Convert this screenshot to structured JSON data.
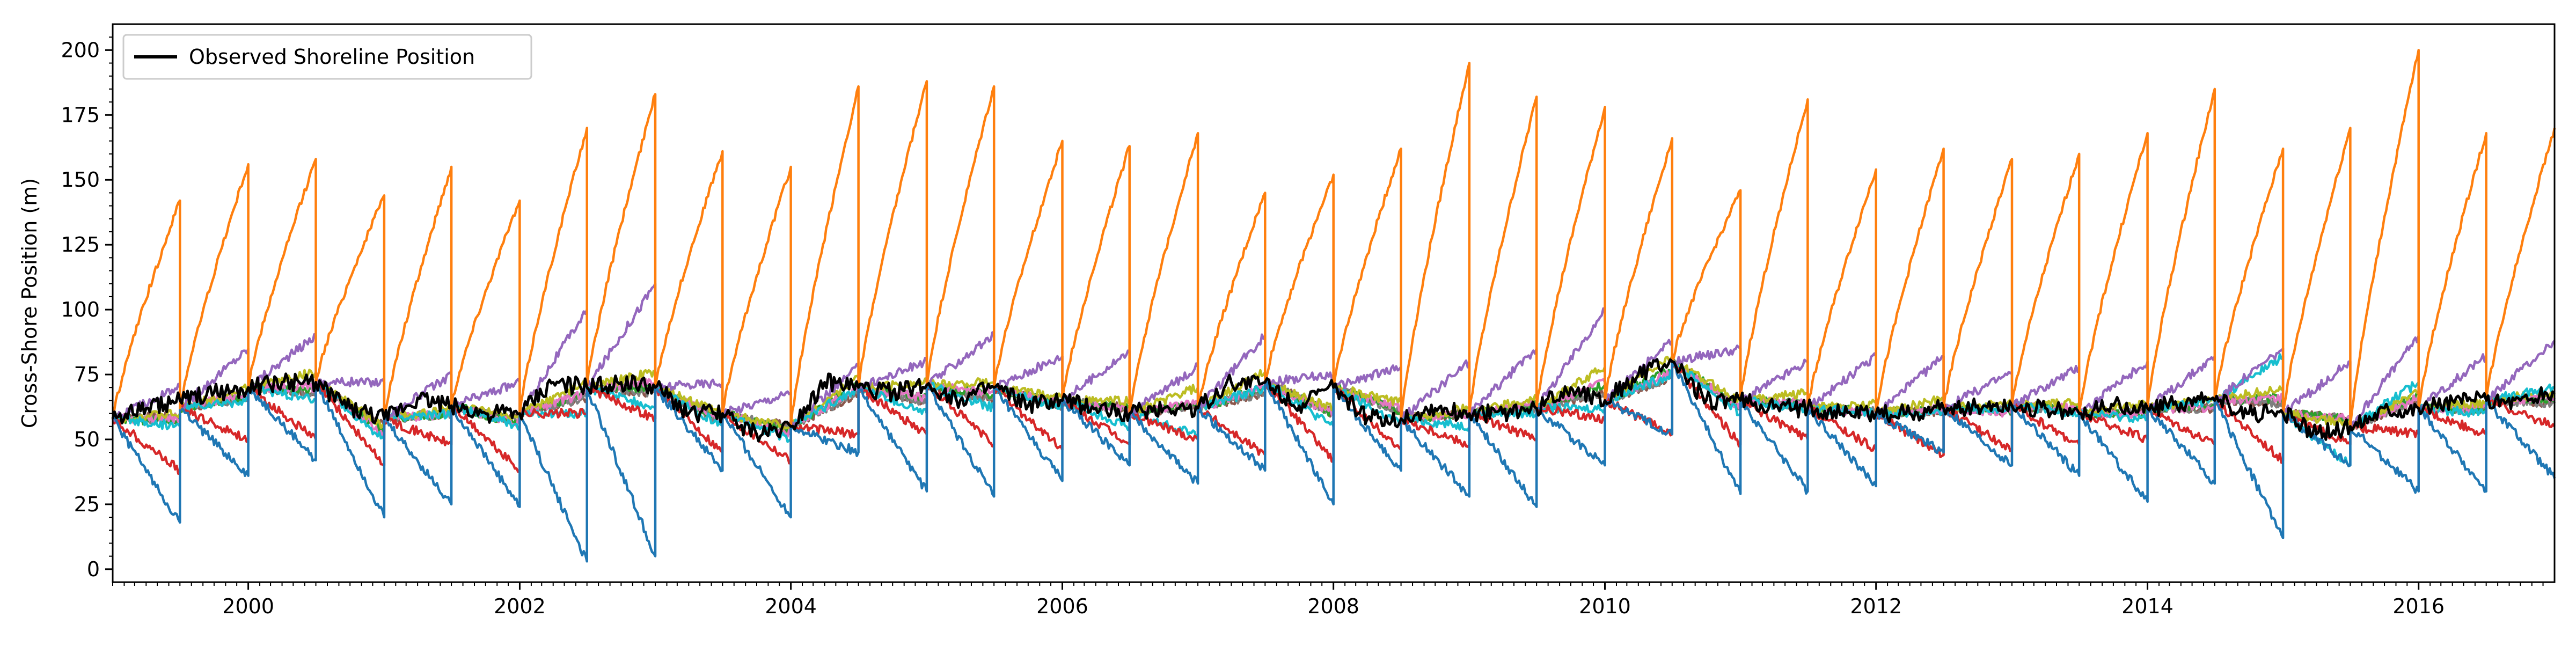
{
  "chart_data": {
    "type": "line",
    "title": "",
    "xlabel": "",
    "ylabel": "Cross-Shore Position (m)",
    "xlim": [
      "1999-01-01",
      "2017-01-01"
    ],
    "ylim": [
      -5,
      210
    ],
    "xticks": [
      "2000",
      "2002",
      "2004",
      "2006",
      "2008",
      "2010",
      "2012",
      "2014",
      "2016"
    ],
    "yticks": [
      0,
      25,
      50,
      75,
      100,
      125,
      150,
      175,
      200
    ],
    "grid": false,
    "legend": {
      "position": "upper-left",
      "entries": [
        "Observed Shoreline Position"
      ]
    },
    "note_generation": "Series are approximated as half-year sawtooth cycles: each series starts every cycle near the observed position and drifts linearly to the listed end value, then resets at the cycle boundary.",
    "cycle_boundaries": [
      "1999-01-01",
      "1999-07-01",
      "2000-01-01",
      "2000-07-01",
      "2001-01-01",
      "2001-07-01",
      "2002-01-01",
      "2002-07-01",
      "2003-01-01",
      "2003-07-01",
      "2004-01-01",
      "2004-07-01",
      "2005-01-01",
      "2005-07-01",
      "2006-01-01",
      "2006-07-01",
      "2007-01-01",
      "2007-07-01",
      "2008-01-01",
      "2008-07-01",
      "2009-01-01",
      "2009-07-01",
      "2010-01-01",
      "2010-07-01",
      "2011-01-01",
      "2011-07-01",
      "2012-01-01",
      "2012-07-01",
      "2013-01-01",
      "2013-07-01",
      "2014-01-01",
      "2014-07-01",
      "2015-01-01",
      "2015-07-01",
      "2016-01-01",
      "2016-07-01",
      "2017-01-01"
    ],
    "observed_start_per_cycle": [
      58,
      62,
      70,
      72,
      58,
      63,
      60,
      70,
      70,
      60,
      55,
      70,
      71,
      70,
      65,
      60,
      62,
      72,
      70,
      58,
      60,
      62,
      65,
      80,
      65,
      62,
      60,
      62,
      63,
      60,
      62,
      65,
      60,
      55,
      62,
      65
    ],
    "series": [
      {
        "name": "Observed Shoreline Position",
        "color": "#000000",
        "values": [
          [
            "1999-01-01",
            58
          ],
          [
            "1999-04-01",
            62
          ],
          [
            "1999-07-01",
            65
          ],
          [
            "1999-10-01",
            68
          ],
          [
            "2000-01-01",
            70
          ],
          [
            "2000-04-01",
            72
          ],
          [
            "2000-07-01",
            72
          ],
          [
            "2000-10-01",
            62
          ],
          [
            "2001-01-01",
            58
          ],
          [
            "2001-04-01",
            66
          ],
          [
            "2001-07-01",
            63
          ],
          [
            "2001-10-01",
            60
          ],
          [
            "2002-01-01",
            60
          ],
          [
            "2002-04-01",
            72
          ],
          [
            "2002-07-01",
            70
          ],
          [
            "2002-10-01",
            72
          ],
          [
            "2003-01-01",
            70
          ],
          [
            "2003-04-01",
            60
          ],
          [
            "2003-07-01",
            60
          ],
          [
            "2003-10-01",
            52
          ],
          [
            "2004-01-01",
            55
          ],
          [
            "2004-04-01",
            72
          ],
          [
            "2004-07-01",
            70
          ],
          [
            "2004-10-01",
            68
          ],
          [
            "2005-01-01",
            71
          ],
          [
            "2005-04-01",
            65
          ],
          [
            "2005-07-01",
            70
          ],
          [
            "2005-10-01",
            63
          ],
          [
            "2006-01-01",
            65
          ],
          [
            "2006-04-01",
            62
          ],
          [
            "2006-07-01",
            60
          ],
          [
            "2006-10-01",
            62
          ],
          [
            "2007-01-01",
            62
          ],
          [
            "2007-04-01",
            72
          ],
          [
            "2007-07-01",
            72
          ],
          [
            "2007-10-01",
            63
          ],
          [
            "2008-01-01",
            70
          ],
          [
            "2008-04-01",
            58
          ],
          [
            "2008-07-01",
            58
          ],
          [
            "2008-10-01",
            62
          ],
          [
            "2009-01-01",
            60
          ],
          [
            "2009-04-01",
            60
          ],
          [
            "2009-07-01",
            62
          ],
          [
            "2009-10-01",
            70
          ],
          [
            "2010-01-01",
            65
          ],
          [
            "2010-04-01",
            75
          ],
          [
            "2010-07-01",
            80
          ],
          [
            "2010-10-01",
            65
          ],
          [
            "2011-01-01",
            65
          ],
          [
            "2011-04-01",
            62
          ],
          [
            "2011-07-01",
            62
          ],
          [
            "2011-10-01",
            60
          ],
          [
            "2012-01-01",
            60
          ],
          [
            "2012-04-01",
            60
          ],
          [
            "2012-07-01",
            62
          ],
          [
            "2012-10-01",
            63
          ],
          [
            "2013-01-01",
            63
          ],
          [
            "2013-04-01",
            62
          ],
          [
            "2013-07-01",
            60
          ],
          [
            "2013-10-01",
            63
          ],
          [
            "2014-01-01",
            62
          ],
          [
            "2014-04-01",
            64
          ],
          [
            "2014-07-01",
            65
          ],
          [
            "2014-10-01",
            60
          ],
          [
            "2015-01-01",
            60
          ],
          [
            "2015-04-01",
            52
          ],
          [
            "2015-07-01",
            55
          ],
          [
            "2015-10-01",
            62
          ],
          [
            "2016-01-01",
            62
          ],
          [
            "2016-04-01",
            65
          ],
          [
            "2016-07-01",
            65
          ],
          [
            "2016-10-01",
            65
          ],
          [
            "2017-01-01",
            68
          ]
        ]
      },
      {
        "name": "",
        "color": "#ff7f0e",
        "cycle_end_values": [
          142,
          156,
          158,
          144,
          155,
          142,
          170,
          183,
          161,
          155,
          186,
          188,
          186,
          165,
          163,
          168,
          145,
          152,
          162,
          195,
          182,
          178,
          166,
          146,
          181,
          154,
          162,
          158,
          160,
          168,
          185,
          162,
          170,
          200,
          168,
          170
        ]
      },
      {
        "name": "",
        "color": "#1f77b4",
        "cycle_end_values": [
          18,
          36,
          42,
          20,
          25,
          24,
          3,
          5,
          38,
          20,
          45,
          30,
          28,
          34,
          40,
          33,
          38,
          25,
          38,
          28,
          24,
          40,
          52,
          29,
          30,
          32,
          45,
          40,
          36,
          26,
          33,
          12,
          40,
          30,
          30,
          35
        ]
      },
      {
        "name": "",
        "color": "#9467bd",
        "cycle_end_values": [
          70,
          85,
          90,
          72,
          75,
          72,
          100,
          110,
          72,
          68,
          78,
          80,
          90,
          82,
          84,
          78,
          90,
          75,
          78,
          80,
          85,
          100,
          88,
          85,
          80,
          82,
          82,
          76,
          78,
          80,
          82,
          85,
          80,
          90,
          82,
          88
        ]
      },
      {
        "name": "",
        "color": "#d62728",
        "cycle_end_values": [
          38,
          50,
          50,
          40,
          48,
          38,
          60,
          58,
          45,
          42,
          52,
          52,
          48,
          46,
          48,
          50,
          44,
          42,
          46,
          48,
          50,
          58,
          52,
          48,
          50,
          46,
          44,
          46,
          48,
          50,
          48,
          42,
          48,
          52,
          52,
          55
        ]
      },
      {
        "name": "",
        "color": "#17becf",
        "cycle_end_values": [
          55,
          65,
          65,
          50,
          60,
          55,
          60,
          62,
          55,
          50,
          70,
          60,
          62,
          62,
          55,
          52,
          70,
          55,
          56,
          55,
          60,
          62,
          75,
          60,
          62,
          60,
          60,
          62,
          60,
          58,
          65,
          82,
          40,
          72,
          60,
          70
        ]
      },
      {
        "name": "",
        "color": "#bcbd22",
        "cycle_end_values": [
          60,
          70,
          76,
          55,
          62,
          58,
          72,
          76,
          60,
          55,
          74,
          72,
          72,
          66,
          65,
          70,
          76,
          62,
          64,
          62,
          66,
          78,
          82,
          65,
          68,
          64,
          66,
          64,
          64,
          64,
          66,
          70,
          56,
          68,
          64,
          68
        ]
      },
      {
        "name": "",
        "color": "#e377c2",
        "cycle_end_values": [
          58,
          68,
          70,
          52,
          60,
          56,
          68,
          72,
          58,
          52,
          70,
          66,
          68,
          64,
          62,
          64,
          70,
          60,
          62,
          60,
          64,
          72,
          76,
          62,
          64,
          60,
          62,
          60,
          62,
          60,
          62,
          66,
          58,
          66,
          62,
          66
        ]
      },
      {
        "name": "",
        "color": "#2ca02c",
        "cycle_end_values": [
          57,
          67,
          69,
          53,
          60,
          56,
          68,
          70,
          57,
          53,
          71,
          66,
          67,
          64,
          62,
          64,
          70,
          60,
          61,
          60,
          63,
          71,
          77,
          63,
          64,
          61,
          62,
          61,
          62,
          60,
          63,
          66,
          58,
          67,
          62,
          66
        ]
      },
      {
        "name": "",
        "color": "#7f7f7f",
        "cycle_end_values": [
          58,
          66,
          68,
          54,
          60,
          57,
          66,
          68,
          57,
          54,
          68,
          64,
          65,
          63,
          61,
          63,
          68,
          60,
          61,
          60,
          62,
          68,
          74,
          62,
          63,
          61,
          61,
          61,
          61,
          60,
          62,
          64,
          58,
          65,
          61,
          64
        ]
      },
      {
        "name": "",
        "color": "#8c564b",
        "cycle_end_values": [
          59,
          66,
          68,
          55,
          60,
          58,
          66,
          68,
          58,
          55,
          68,
          64,
          65,
          63,
          62,
          63,
          68,
          60,
          61,
          60,
          62,
          68,
          74,
          62,
          63,
          61,
          61,
          61,
          61,
          60,
          62,
          64,
          58,
          65,
          62,
          64
        ]
      }
    ]
  }
}
